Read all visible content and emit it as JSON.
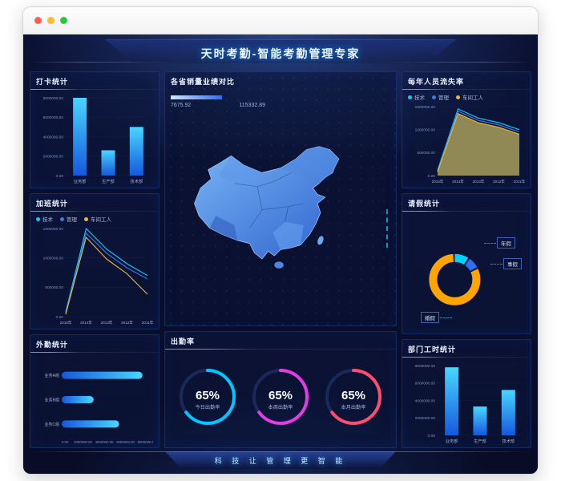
{
  "window": {
    "close_color": "#ff5f57",
    "minimize_color": "#febc2e",
    "zoom_color": "#28c840"
  },
  "header": {
    "title": "天时考勤-智能考勤管理专家"
  },
  "footer": {
    "slogan": "科 技 让 管 理 更 智 能"
  },
  "colors": {
    "accent": "#00c6ff",
    "background": "#0b1134",
    "panel_border": "#2e5ec8",
    "bar_gradient_top": "#49d6ff",
    "bar_gradient_bottom": "#1558dd"
  },
  "chart_data": [
    {
      "id": "punch",
      "type": "bar",
      "title": "打卡统计",
      "categories": [
        "业务部",
        "生产部",
        "技术部"
      ],
      "values": [
        8000000,
        2600000,
        5000000
      ],
      "ylim": [
        0,
        8000000
      ],
      "ytick_step": 2000000
    },
    {
      "id": "overtime",
      "type": "line",
      "title": "加班统计",
      "categories": [
        "2015年",
        "2014年",
        "2013年",
        "2012年",
        "2011年"
      ],
      "ylim": [
        0,
        1500000
      ],
      "ytick_step": 500000,
      "series": [
        {
          "name": "技术",
          "color": "#00d2ff",
          "values": [
            80000,
            1500000,
            1150000,
            900000,
            700000
          ]
        },
        {
          "name": "管理",
          "color": "#3a78f2",
          "values": [
            60000,
            1420000,
            1080000,
            830000,
            640000
          ]
        },
        {
          "name": "车间工人",
          "color": "#f2b632",
          "values": [
            40000,
            1350000,
            980000,
            730000,
            380000
          ]
        }
      ]
    },
    {
      "id": "field",
      "type": "hbar",
      "title": "外勤统计",
      "categories": [
        "业务A组",
        "业务B组",
        "业务C组"
      ],
      "values": [
        7600000,
        3000000,
        5400000
      ],
      "xlim": [
        0,
        8000000
      ],
      "xtick_step": 2000000
    },
    {
      "id": "map",
      "type": "map",
      "title": "各省销量业绩对比",
      "min_label": "7675.92",
      "max_label": "115332.89",
      "legend_gradient": [
        "#cfe6ff",
        "#2f6ef0"
      ]
    },
    {
      "id": "attendance",
      "type": "gauge",
      "title": "出勤率",
      "gauges": [
        {
          "percent": 65,
          "label": "今日出勤率",
          "color": "#00c6ff"
        },
        {
          "percent": 65,
          "label": "本周出勤率",
          "color": "#e23de2"
        },
        {
          "percent": 65,
          "label": "本月出勤率",
          "color": "#ff4d6d"
        }
      ]
    },
    {
      "id": "turnover",
      "type": "line",
      "title": "每年人员流失率",
      "categories": [
        "2015年",
        "2014年",
        "2013年",
        "2012年",
        "2011年"
      ],
      "ylim": [
        0,
        1500000
      ],
      "ytick_step": 500000,
      "series": [
        {
          "name": "技术",
          "color": "#00d2ff",
          "values": [
            120000,
            1450000,
            1250000,
            1150000,
            1000000
          ]
        },
        {
          "name": "管理",
          "color": "#3a78f2",
          "values": [
            100000,
            1400000,
            1200000,
            1100000,
            950000
          ]
        },
        {
          "name": "车间工人",
          "color": "#f2b632",
          "fill": "rgba(168,158,90,0.85)",
          "values": [
            80000,
            1350000,
            1150000,
            1050000,
            900000
          ]
        }
      ]
    },
    {
      "id": "leave",
      "type": "donut",
      "title": "请假统计",
      "segments": [
        {
          "label": "年假",
          "value": 10,
          "color": "#00d2ff"
        },
        {
          "label": "事假",
          "value": 8,
          "color": "#2f6ef0"
        },
        {
          "label": "婚假",
          "value": 82,
          "color": "#ffa400"
        }
      ]
    },
    {
      "id": "dept_hours",
      "type": "bar",
      "title": "部门工时统计",
      "categories": [
        "业务部",
        "生产部",
        "技术部"
      ],
      "values": [
        7800000,
        3300000,
        5200000
      ],
      "ylim": [
        0,
        8000000
      ],
      "ytick_step": 2000000
    }
  ]
}
